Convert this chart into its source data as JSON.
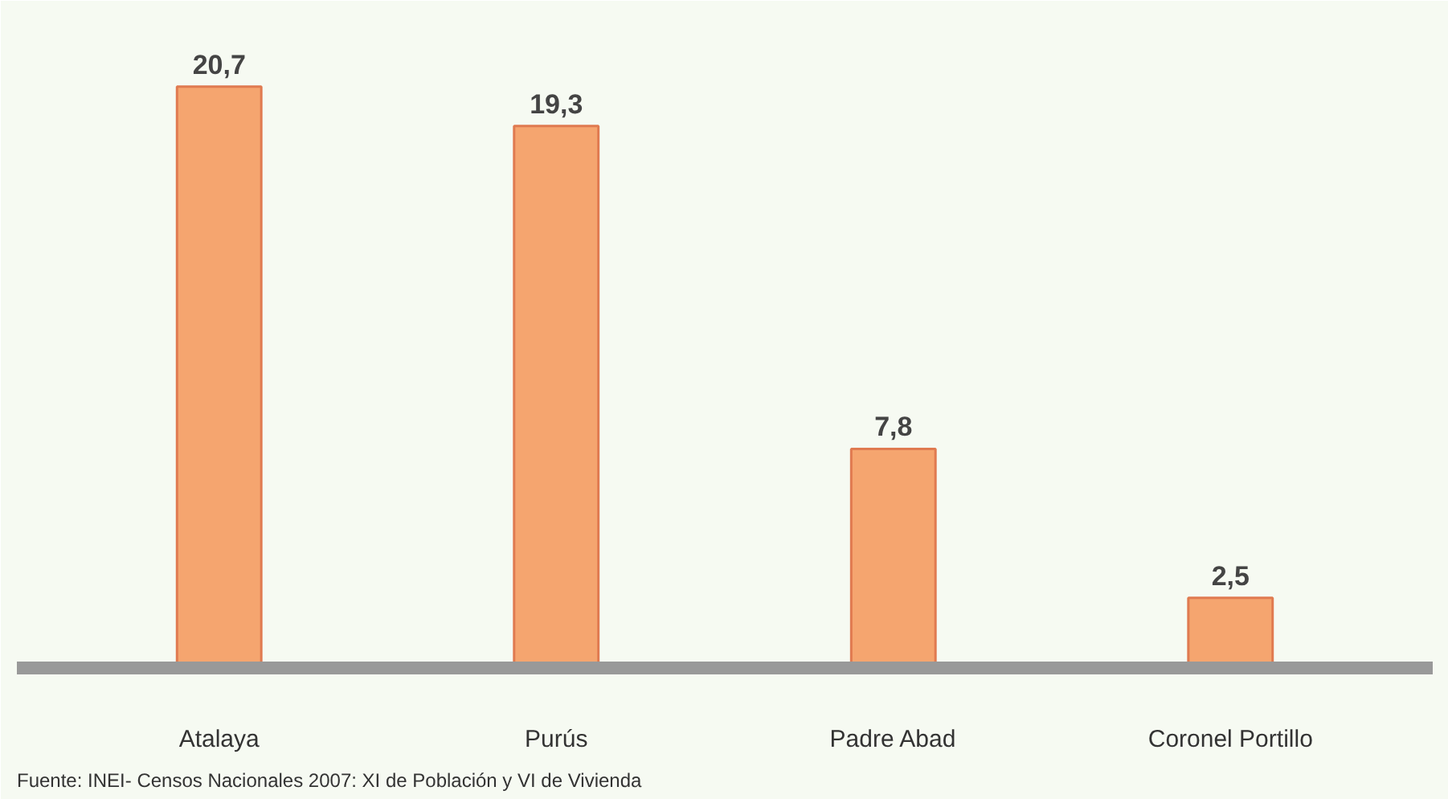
{
  "chart_data": {
    "type": "bar",
    "categories": [
      "Atalaya",
      "Purús",
      "Padre Abad",
      "Coronel Portillo"
    ],
    "values": [
      20.7,
      19.3,
      7.8,
      2.5
    ],
    "value_labels": [
      "20,7",
      "19,3",
      "7,8",
      "2,5"
    ],
    "color": "#f5a56f",
    "annotations": [
      "Fuente:  INEI- Censos Nacionales 2007: XI de Población y VI de Vivienda"
    ]
  }
}
